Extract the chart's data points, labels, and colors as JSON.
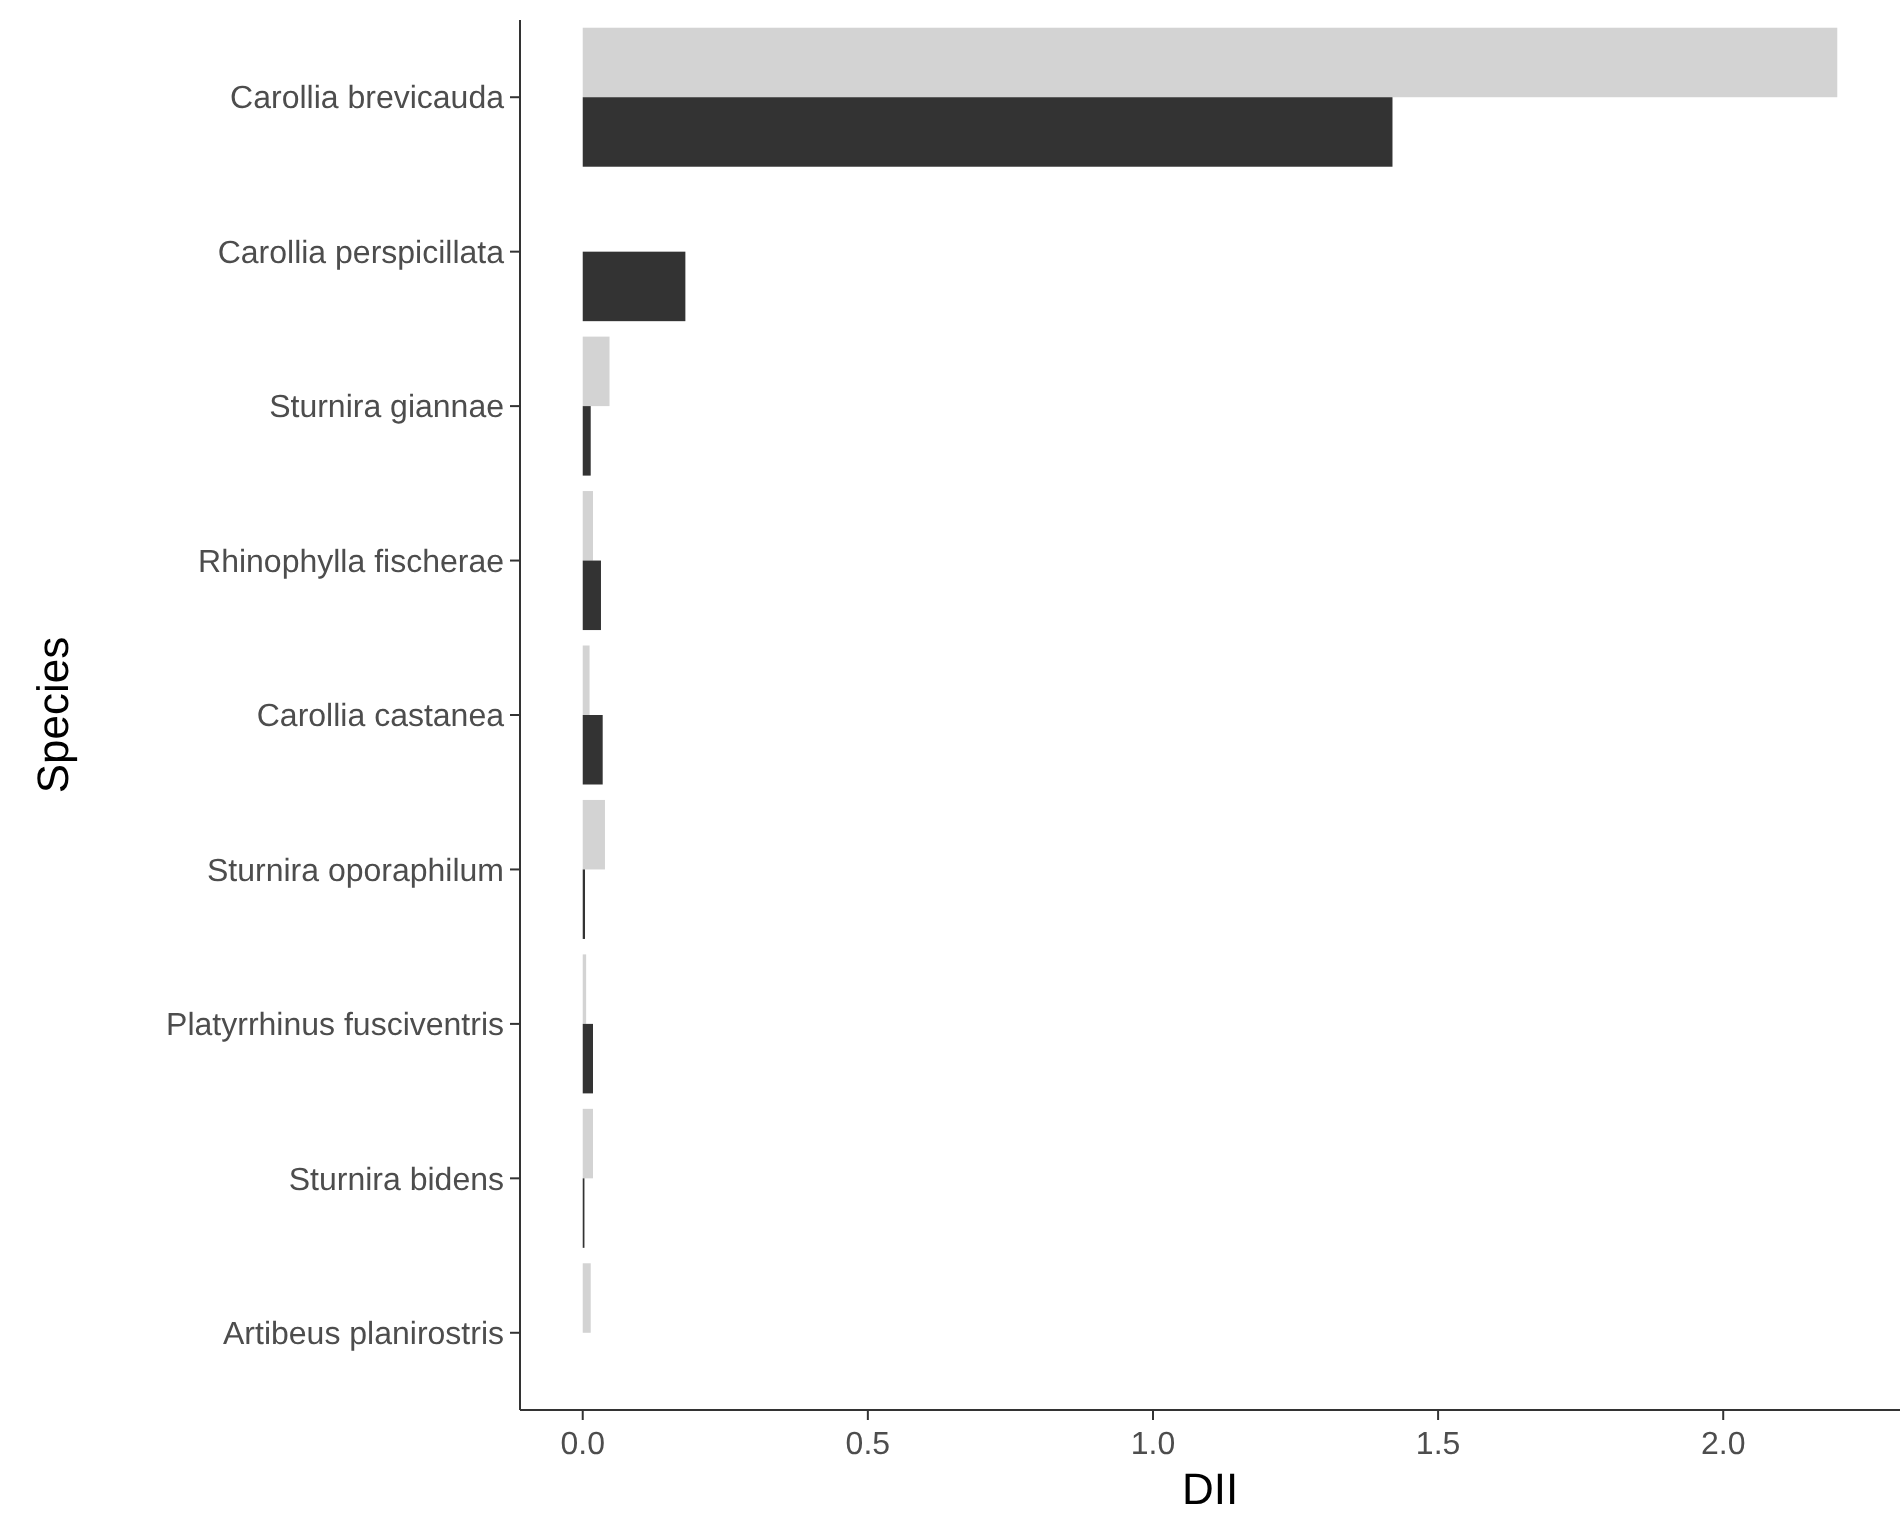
{
  "chart_data": {
    "type": "bar",
    "orientation": "horizontal",
    "xlabel": "DII",
    "ylabel": "Species",
    "categories": [
      "Carollia brevicauda",
      "Carollia perspicillata",
      "Sturnira giannae",
      "Rhinophylla fischerae",
      "Carollia castanea",
      "Sturnira oporaphilum",
      "Platyrrhinus fusciventris",
      "Sturnira bidens",
      "Artibeus planirostris"
    ],
    "series": [
      {
        "color": "#d3d3d3",
        "values": [
          2.2,
          null,
          0.047,
          0.018,
          0.012,
          0.039,
          0.006,
          0.018,
          0.014
        ]
      },
      {
        "color": "#333333",
        "values": [
          1.42,
          0.18,
          0.014,
          0.032,
          0.035,
          0.004,
          0.018,
          0.003,
          0
        ]
      }
    ],
    "xlim": [
      -0.11,
      2.31
    ],
    "xticks": [
      {
        "value": 0,
        "label": "0.0"
      },
      0.5,
      {
        "value": 1,
        "label": "1.0"
      },
      1.5,
      {
        "value": 2,
        "label": "2.0"
      }
    ],
    "grid": false
  }
}
